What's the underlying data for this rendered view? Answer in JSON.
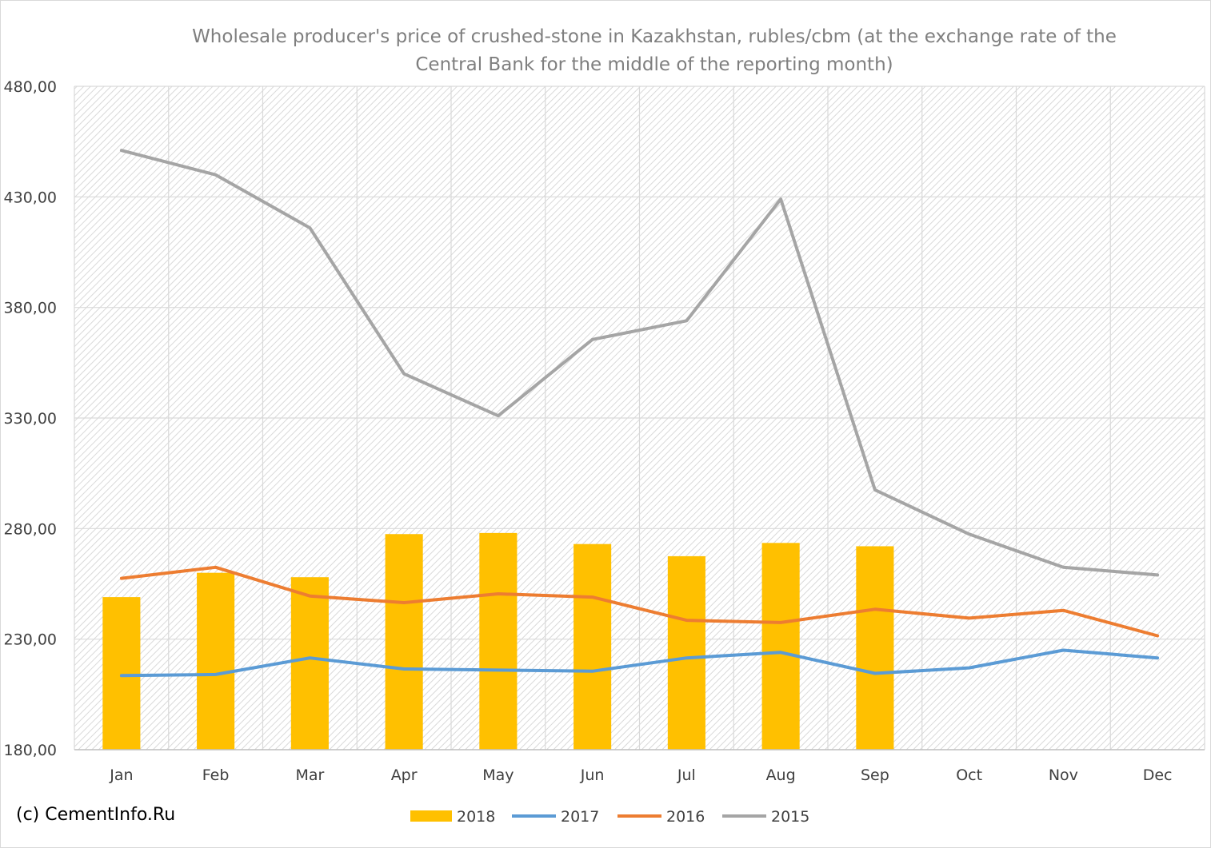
{
  "chart_data": {
    "type": "bar",
    "title_lines": [
      "Wholesale producer's price of crushed-stone  in Kazakhstan, rubles/cbm (at the exchange rate of the",
      "Central Bank for the middle of the reporting month)"
    ],
    "xlabel": "",
    "ylabel": "",
    "categories": [
      "Jan",
      "Feb",
      "Mar",
      "Apr",
      "May",
      "Jun",
      "Jul",
      "Aug",
      "Sep",
      "Oct",
      "Nov",
      "Dec"
    ],
    "ylim": [
      180,
      480
    ],
    "yticks": [
      180,
      230,
      280,
      330,
      380,
      430,
      480
    ],
    "ytick_labels": [
      "180,00",
      "230,00",
      "280,00",
      "330,00",
      "380,00",
      "430,00",
      "480,00"
    ],
    "grid": true,
    "legend_position": "bottom",
    "series": [
      {
        "name": "2018",
        "kind": "bar",
        "color": "#ffc000",
        "values": [
          249,
          260,
          258,
          277.5,
          278,
          273,
          267.5,
          273.5,
          272,
          null,
          null,
          null
        ]
      },
      {
        "name": "2017",
        "kind": "line",
        "color": "#5b9bd5",
        "values": [
          213.5,
          214,
          221.5,
          216.5,
          216,
          215.5,
          221.5,
          224,
          214.5,
          217,
          225,
          221.5
        ]
      },
      {
        "name": "2016",
        "kind": "line",
        "color": "#ed7d31",
        "values": [
          257.5,
          262.5,
          249.5,
          246.5,
          250.5,
          249,
          238.5,
          237.5,
          243.5,
          239.5,
          243,
          231.5
        ]
      },
      {
        "name": "2015",
        "kind": "line",
        "color": "#a5a5a5",
        "values": [
          451,
          440,
          416,
          350,
          331,
          365.5,
          374,
          429,
          297.5,
          277.5,
          262.5,
          259
        ]
      }
    ]
  },
  "copyright": "(c) CementInfo.Ru"
}
